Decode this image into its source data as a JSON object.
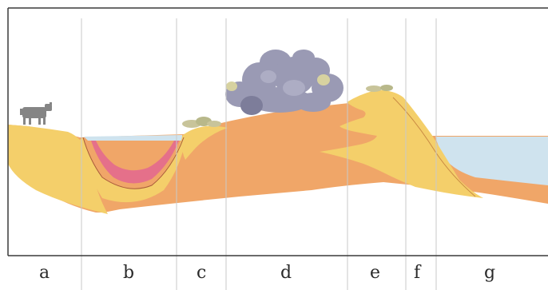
{
  "zones": [
    {
      "id": "a",
      "label": "a"
    },
    {
      "id": "b",
      "label": "b"
    },
    {
      "id": "c",
      "label": "c"
    },
    {
      "id": "d",
      "label": "d"
    },
    {
      "id": "e",
      "label": "e"
    },
    {
      "id": "f",
      "label": "f"
    },
    {
      "id": "g",
      "label": "g"
    }
  ],
  "colors": {
    "frame": "#3a3a3a",
    "divider": "#c9c9c9",
    "water": "#cfe3ee",
    "orange_soil": "#f0a668",
    "yellow_soil": "#f4cf6a",
    "pink_sediment": "#e5708a",
    "vegetation": "#9a9ab4",
    "cow": "#858585"
  },
  "icons": {
    "animal": "cow-icon",
    "trees": "tree-cluster-icon",
    "shrubs": "shrub-icon"
  }
}
